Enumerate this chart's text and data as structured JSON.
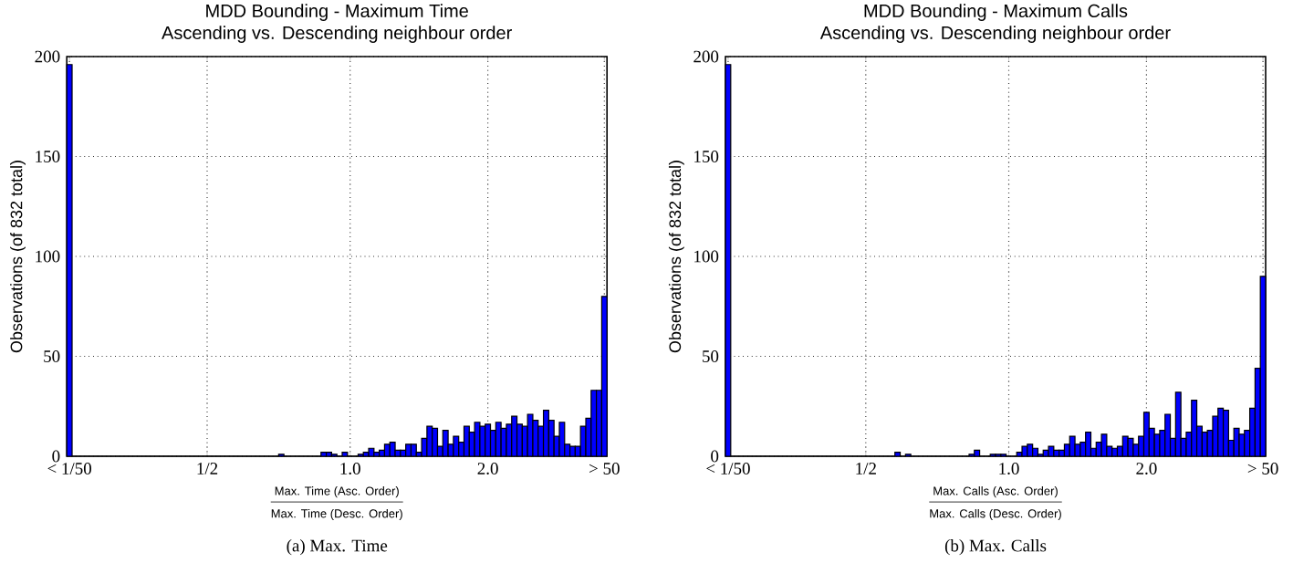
{
  "chart_data": [
    {
      "type": "bar",
      "title": "MDD Bounding - Maximum Time",
      "subtitle": "Ascending vs. Descending neighbour order",
      "xlabel": "Max. Time (Asc. Order)",
      "ylabel": "Observations (of 832 total)",
      "annotations": [
        "Max. Time (Desc. Order)",
        "(a) Max. Time"
      ],
      "categories": [
        "< 1/50",
        null,
        null,
        null,
        null,
        null,
        null,
        null,
        null,
        null,
        null,
        null,
        null,
        null,
        null,
        null,
        null,
        null,
        null,
        null,
        null,
        null,
        null,
        null,
        null,
        null,
        "1/2",
        null,
        null,
        null,
        null,
        null,
        null,
        null,
        null,
        null,
        null,
        null,
        null,
        null,
        null,
        null,
        null,
        null,
        null,
        null,
        null,
        null,
        null,
        null,
        null,
        null,
        null,
        "1.0",
        null,
        null,
        null,
        null,
        null,
        null,
        null,
        null,
        null,
        null,
        null,
        null,
        null,
        null,
        null,
        null,
        null,
        null,
        null,
        null,
        null,
        null,
        null,
        null,
        null,
        "2.0",
        null,
        null,
        null,
        null,
        null,
        null,
        null,
        null,
        null,
        null,
        null,
        null,
        null,
        null,
        null,
        null,
        null,
        null,
        null,
        null,
        null,
        "> 50"
      ],
      "values": [
        196,
        0,
        0,
        0,
        0,
        0,
        0,
        0,
        0,
        0,
        0,
        0,
        0,
        0,
        0,
        0,
        0,
        0,
        0,
        0,
        0,
        0,
        0,
        0,
        0,
        0,
        0,
        0,
        0,
        0,
        0,
        0,
        0,
        0,
        0,
        0,
        0,
        0,
        0,
        0,
        1,
        0,
        0,
        0,
        0,
        0,
        0,
        0,
        2,
        2,
        1,
        0,
        2,
        0,
        0,
        1,
        2,
        4,
        2,
        3,
        6,
        7,
        3,
        3,
        6,
        6,
        2,
        9,
        15,
        14,
        5,
        13,
        6,
        10,
        7,
        15,
        12,
        17,
        15,
        16,
        13,
        17,
        14,
        16,
        20,
        16,
        15,
        21,
        18,
        15,
        23,
        18,
        10,
        17,
        6,
        5,
        5,
        15,
        19,
        33,
        33,
        80
      ],
      "color": "#0000ff",
      "ylim": [
        0,
        200
      ],
      "yticks": [
        0,
        50,
        100,
        150,
        200
      ],
      "grid": true
    },
    {
      "type": "bar",
      "title": "MDD Bounding - Maximum Calls",
      "subtitle": "Ascending vs. Descending neighbour order",
      "xlabel": "Max. Calls (Asc. Order)",
      "ylabel": "Observations (of 832 total)",
      "annotations": [
        "Max. Calls (Desc. Order)",
        "(b) Max. Calls"
      ],
      "categories": [
        "< 1/50",
        null,
        null,
        null,
        null,
        null,
        null,
        null,
        null,
        null,
        null,
        null,
        null,
        null,
        null,
        null,
        null,
        null,
        null,
        null,
        null,
        null,
        null,
        null,
        null,
        null,
        "1/2",
        null,
        null,
        null,
        null,
        null,
        null,
        null,
        null,
        null,
        null,
        null,
        null,
        null,
        null,
        null,
        null,
        null,
        null,
        null,
        null,
        null,
        null,
        null,
        null,
        null,
        null,
        "1.0",
        null,
        null,
        null,
        null,
        null,
        null,
        null,
        null,
        null,
        null,
        null,
        null,
        null,
        null,
        null,
        null,
        null,
        null,
        null,
        null,
        null,
        null,
        null,
        null,
        null,
        "2.0",
        null,
        null,
        null,
        null,
        null,
        null,
        null,
        null,
        null,
        null,
        null,
        null,
        null,
        null,
        null,
        null,
        null,
        null,
        null,
        null,
        null,
        "> 50"
      ],
      "values": [
        196,
        0,
        0,
        0,
        0,
        0,
        0,
        0,
        0,
        0,
        0,
        0,
        0,
        0,
        0,
        0,
        0,
        0,
        0,
        0,
        0,
        0,
        0,
        0,
        0,
        0,
        0,
        0,
        0,
        0,
        0,
        0,
        2,
        0,
        1,
        0,
        0,
        0,
        0,
        0,
        0,
        0,
        0,
        0,
        0,
        0,
        1,
        3,
        0,
        0,
        1,
        1,
        1,
        0,
        0,
        2,
        5,
        6,
        4,
        1,
        3,
        5,
        3,
        3,
        6,
        10,
        6,
        7,
        12,
        4,
        7,
        11,
        5,
        4,
        5,
        10,
        9,
        6,
        10,
        22,
        14,
        11,
        13,
        21,
        9,
        32,
        9,
        12,
        28,
        15,
        12,
        13,
        20,
        24,
        23,
        8,
        14,
        11,
        13,
        24,
        44,
        90
      ],
      "color": "#0000ff",
      "ylim": [
        0,
        200
      ],
      "yticks": [
        0,
        50,
        100,
        150,
        200
      ],
      "grid": true
    }
  ]
}
